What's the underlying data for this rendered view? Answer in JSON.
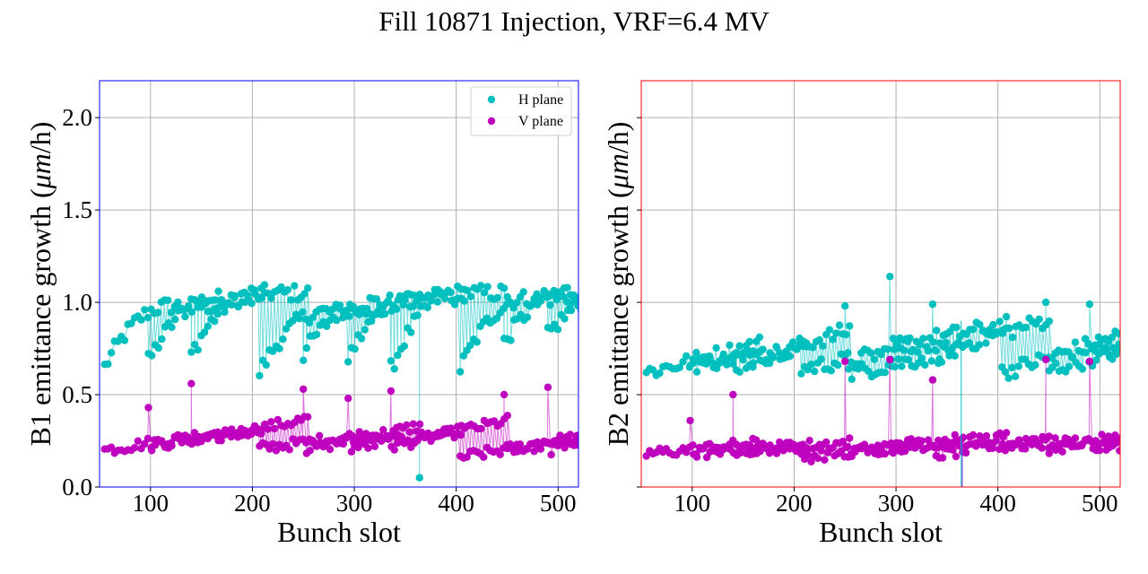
{
  "figure": {
    "title": "Fill 10871 Injection, VRF=6.4 MV"
  },
  "chart_data": [
    {
      "type": "line",
      "panel": "left",
      "frame_color": "#0000ff",
      "title": "",
      "xlabel": "Bunch slot",
      "ylabel_prefix": "B1 emittance growth (",
      "ylabel_unit": "μm",
      "ylabel_suffix": "/h)",
      "xlim": [
        50,
        520
      ],
      "ylim": [
        0.0,
        2.2
      ],
      "xticks": [
        100,
        200,
        300,
        400,
        500
      ],
      "xtick_labels": [
        "100",
        "200",
        "300",
        "400",
        "500"
      ],
      "yticks": [
        0.0,
        0.5,
        1.0,
        1.5,
        2.0
      ],
      "ytick_labels": [
        "0.0",
        "0.5",
        "1.0",
        "1.5",
        "2.0"
      ],
      "grid": true,
      "legend": {
        "placement": "top-right",
        "entries": [
          {
            "label": "H plane",
            "color": "#00bfbf"
          },
          {
            "label": "V plane",
            "color": "#bf00bf"
          }
        ]
      },
      "series": [
        {
          "name": "H plane",
          "color": "#00bfbf",
          "trains": [
            {
              "x0": 55,
              "n": 36,
              "start": 0.65,
              "end": 0.98,
              "shape": "rise"
            },
            {
              "x0": 98,
              "n": 36,
              "start": 0.68,
              "end": 1.02,
              "shape": "rise"
            },
            {
              "x0": 140,
              "n": 36,
              "start": 0.72,
              "end": 1.05,
              "shape": "rise"
            },
            {
              "x0": 207,
              "n": 36,
              "start": 0.62,
              "end": 0.95,
              "shape": "rise"
            },
            {
              "x0": 250,
              "n": 36,
              "start": 0.72,
              "end": 1.0,
              "shape": "rise"
            },
            {
              "x0": 294,
              "n": 36,
              "start": 0.7,
              "end": 1.03,
              "shape": "rise"
            },
            {
              "x0": 336,
              "n": 36,
              "start": 0.64,
              "end": 1.05,
              "shape": "rise"
            },
            {
              "x0": 404,
              "n": 36,
              "start": 0.64,
              "end": 1.02,
              "shape": "rise"
            },
            {
              "x0": 447,
              "n": 36,
              "start": 0.78,
              "end": 1.06,
              "shape": "rise"
            },
            {
              "x0": 490,
              "n": 36,
              "start": 0.82,
              "end": 1.05,
              "shape": "rise"
            }
          ],
          "outliers": [
            {
              "x": 364,
              "y": 0.05
            }
          ]
        },
        {
          "name": "V plane",
          "color": "#bf00bf",
          "trains": [
            {
              "x0": 55,
              "n": 36,
              "start": 0.2,
              "end": 0.3,
              "shape": "linear"
            },
            {
              "x0": 98,
              "n": 36,
              "start": 0.22,
              "end": 0.32,
              "shape": "linear"
            },
            {
              "x0": 140,
              "n": 36,
              "start": 0.24,
              "end": 0.37,
              "shape": "linear"
            },
            {
              "x0": 207,
              "n": 36,
              "start": 0.21,
              "end": 0.29,
              "shape": "linear"
            },
            {
              "x0": 250,
              "n": 36,
              "start": 0.2,
              "end": 0.33,
              "shape": "linear"
            },
            {
              "x0": 294,
              "n": 36,
              "start": 0.21,
              "end": 0.31,
              "shape": "linear"
            },
            {
              "x0": 336,
              "n": 36,
              "start": 0.22,
              "end": 0.36,
              "shape": "linear"
            },
            {
              "x0": 404,
              "n": 36,
              "start": 0.16,
              "end": 0.27,
              "shape": "linear"
            },
            {
              "x0": 447,
              "n": 36,
              "start": 0.19,
              "end": 0.29,
              "shape": "linear"
            },
            {
              "x0": 490,
              "n": 36,
              "start": 0.2,
              "end": 0.32,
              "shape": "linear"
            }
          ],
          "first_bunch_peaks": [
            0.43,
            0.56,
            0.53,
            0.48,
            0.52,
            0.5,
            0.54
          ],
          "peak_slots": [
            98,
            140,
            250,
            294,
            336,
            447,
            490
          ]
        }
      ]
    },
    {
      "type": "line",
      "panel": "right",
      "frame_color": "#ff0000",
      "title": "",
      "xlabel": "Bunch slot",
      "ylabel_prefix": "B2 emittance growth (",
      "ylabel_unit": "μm",
      "ylabel_suffix": "/h)",
      "xlim": [
        50,
        520
      ],
      "ylim": [
        0.0,
        2.2
      ],
      "xticks": [
        100,
        200,
        300,
        400,
        500
      ],
      "xtick_labels": [
        "100",
        "200",
        "300",
        "400",
        "500"
      ],
      "yticks": [
        0.0,
        0.5,
        1.0,
        1.5,
        2.0
      ],
      "ytick_labels": [],
      "grid": true,
      "legend": null,
      "series": [
        {
          "name": "H plane",
          "color": "#00bfbf",
          "trains": [
            {
              "x0": 55,
              "n": 36,
              "start": 0.62,
              "end": 0.78,
              "shape": "linear"
            },
            {
              "x0": 98,
              "n": 36,
              "start": 0.66,
              "end": 0.76,
              "shape": "linear"
            },
            {
              "x0": 140,
              "n": 36,
              "start": 0.65,
              "end": 0.85,
              "shape": "linear"
            },
            {
              "x0": 207,
              "n": 36,
              "start": 0.64,
              "end": 0.76,
              "shape": "linear"
            },
            {
              "x0": 250,
              "n": 36,
              "start": 0.61,
              "end": 0.74,
              "shape": "linear"
            },
            {
              "x0": 294,
              "n": 36,
              "start": 0.76,
              "end": 0.88,
              "shape": "linear"
            },
            {
              "x0": 336,
              "n": 36,
              "start": 0.72,
              "end": 0.91,
              "shape": "linear"
            },
            {
              "x0": 404,
              "n": 36,
              "start": 0.62,
              "end": 0.82,
              "shape": "linear"
            },
            {
              "x0": 447,
              "n": 36,
              "start": 0.63,
              "end": 0.8,
              "shape": "linear"
            },
            {
              "x0": 490,
              "n": 36,
              "start": 0.72,
              "end": 0.88,
              "shape": "linear"
            }
          ],
          "first_bunch_peaks": [
            0.98,
            1.14,
            0.99,
            1.0,
            0.99
          ],
          "peak_slots": [
            250,
            294,
            336,
            447,
            490
          ]
        },
        {
          "name": "V plane",
          "color": "#bf00bf",
          "trains": [
            {
              "x0": 55,
              "n": 36,
              "start": 0.18,
              "end": 0.24,
              "shape": "linear"
            },
            {
              "x0": 98,
              "n": 36,
              "start": 0.18,
              "end": 0.22,
              "shape": "linear"
            },
            {
              "x0": 140,
              "n": 36,
              "start": 0.2,
              "end": 0.24,
              "shape": "linear"
            },
            {
              "x0": 207,
              "n": 36,
              "start": 0.16,
              "end": 0.24,
              "shape": "linear"
            },
            {
              "x0": 250,
              "n": 36,
              "start": 0.18,
              "end": 0.26,
              "shape": "linear"
            },
            {
              "x0": 294,
              "n": 36,
              "start": 0.21,
              "end": 0.27,
              "shape": "linear"
            },
            {
              "x0": 336,
              "n": 36,
              "start": 0.17,
              "end": 0.27,
              "shape": "linear"
            },
            {
              "x0": 404,
              "n": 36,
              "start": 0.22,
              "end": 0.26,
              "shape": "linear"
            },
            {
              "x0": 447,
              "n": 36,
              "start": 0.21,
              "end": 0.27,
              "shape": "linear"
            },
            {
              "x0": 490,
              "n": 36,
              "start": 0.21,
              "end": 0.27,
              "shape": "linear"
            }
          ],
          "first_bunch_peaks": [
            0.36,
            0.5,
            0.68,
            0.69,
            0.58,
            0.69,
            0.68
          ],
          "peak_slots": [
            98,
            140,
            250,
            294,
            336,
            447,
            490
          ]
        }
      ]
    }
  ]
}
